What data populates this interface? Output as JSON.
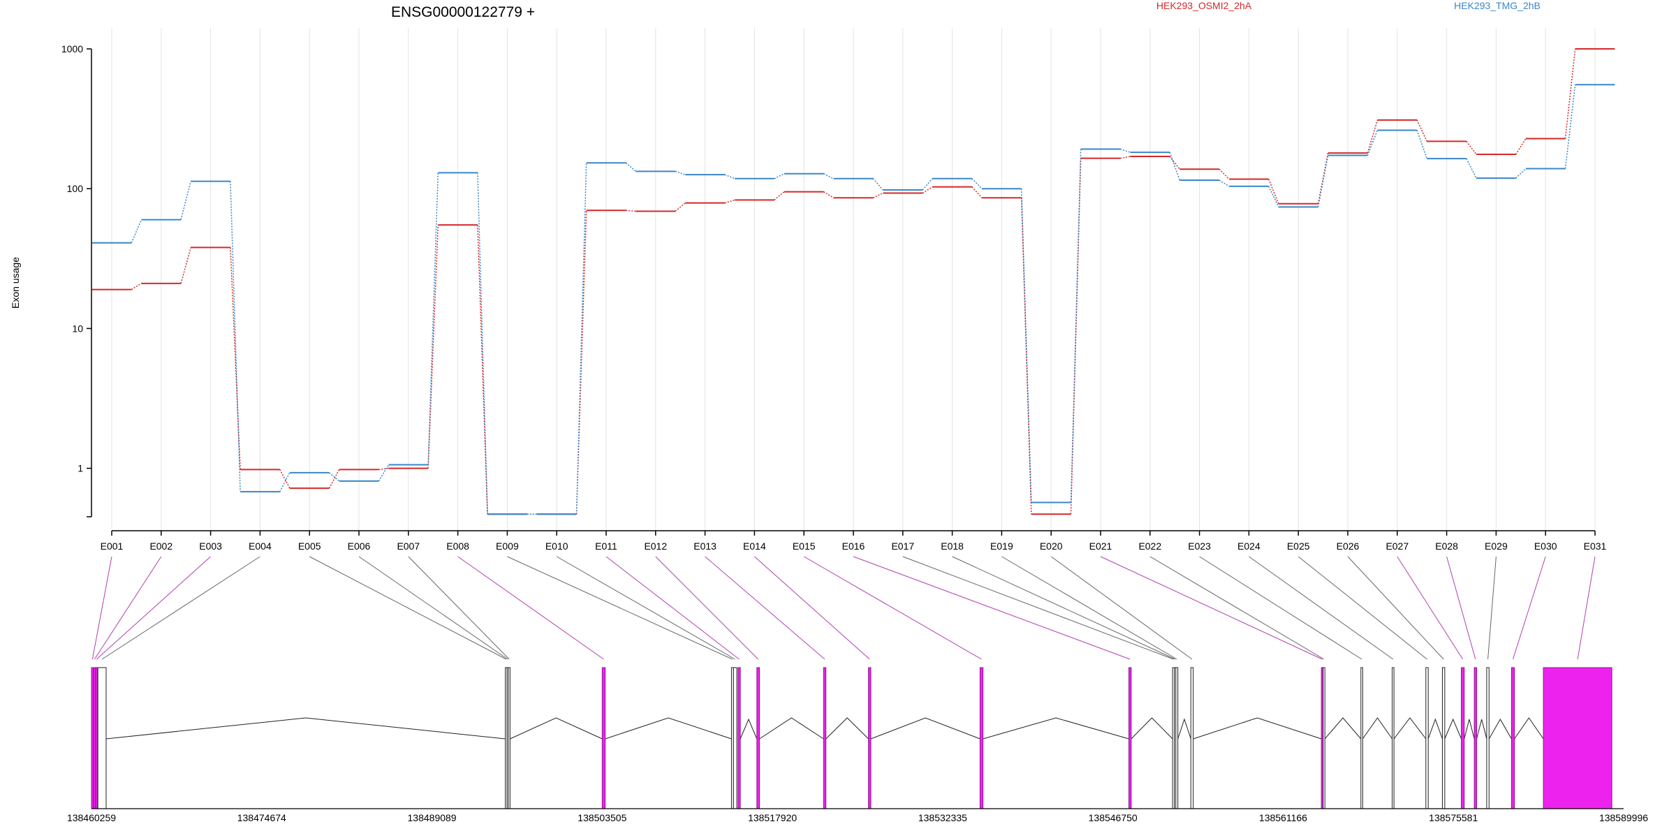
{
  "chart_data": {
    "type": "line",
    "title": "ENSG00000122779 +",
    "ylabel": "Exon usage",
    "xlabel": "",
    "y_scale": "log",
    "ylim": [
      0.45,
      1000
    ],
    "y_ticks": [
      1,
      10,
      100,
      1000
    ],
    "y_tick_labels": [
      "1",
      "10",
      "100",
      "1000"
    ],
    "grid": "vertical",
    "legend_position": "top",
    "categories": [
      "E001",
      "E002",
      "E003",
      "E004",
      "E005",
      "E006",
      "E007",
      "E008",
      "E009",
      "E010",
      "E011",
      "E012",
      "E013",
      "E014",
      "E015",
      "E016",
      "E017",
      "E018",
      "E019",
      "E020",
      "E021",
      "E022",
      "E023",
      "E024",
      "E025",
      "E026",
      "E027",
      "E028",
      "E029",
      "E030",
      "E031"
    ],
    "series": [
      {
        "name": "HEK293_OSMI2_2hA",
        "color": "#d62728",
        "values": [
          19,
          21,
          38,
          0.98,
          0.72,
          0.98,
          1.0,
          55,
          0.47,
          0.47,
          70,
          69,
          79,
          83,
          95,
          86,
          93,
          103,
          86,
          0.47,
          165,
          170,
          138,
          117,
          78,
          180,
          310,
          218,
          176,
          228,
          1000
        ]
      },
      {
        "name": "HEK293_TMG_2hB",
        "color": "#3a86c8",
        "values": [
          41,
          60,
          113,
          0.68,
          0.93,
          0.81,
          1.06,
          130,
          0.47,
          0.47,
          153,
          133,
          126,
          118,
          128,
          118,
          98,
          118,
          100,
          0.57,
          192,
          182,
          115,
          104,
          74,
          173,
          262,
          164,
          119,
          139,
          555
        ]
      }
    ],
    "genomic_axis": {
      "range": [
        138460259,
        138589996
      ],
      "tick_labels": [
        "138460259",
        "138474674",
        "138489089",
        "138503505",
        "138517920",
        "138532335",
        "138546750",
        "138561166",
        "138575581",
        "138589996"
      ]
    },
    "exon_positions": [
      {
        "id": "E001",
        "start": 138460259,
        "end": 138460420,
        "highlight": true
      },
      {
        "id": "E002",
        "start": 138460440,
        "end": 138460600,
        "highlight": true
      },
      {
        "id": "E003",
        "start": 138460620,
        "end": 138460760,
        "highlight": true
      },
      {
        "id": "E004",
        "start": 138460800,
        "end": 138461500,
        "highlight": false
      },
      {
        "id": "E005",
        "start": 138495300,
        "end": 138495450,
        "highlight": false
      },
      {
        "id": "E006",
        "start": 138495450,
        "end": 138495560,
        "highlight": false
      },
      {
        "id": "E007",
        "start": 138495560,
        "end": 138495700,
        "highlight": false
      },
      {
        "id": "E008",
        "start": 138503505,
        "end": 138503760,
        "highlight": true
      },
      {
        "id": "E009",
        "start": 138514450,
        "end": 138514620,
        "highlight": false
      },
      {
        "id": "E010",
        "start": 138514620,
        "end": 138514900,
        "highlight": false
      },
      {
        "id": "E011",
        "start": 138515000,
        "end": 138515200,
        "highlight": true
      },
      {
        "id": "E012",
        "start": 138516600,
        "end": 138516820,
        "highlight": true
      },
      {
        "id": "E013",
        "start": 138522250,
        "end": 138522450,
        "highlight": true
      },
      {
        "id": "E014",
        "start": 138526050,
        "end": 138526250,
        "highlight": true
      },
      {
        "id": "E015",
        "start": 138535500,
        "end": 138535750,
        "highlight": true
      },
      {
        "id": "E016",
        "start": 138548100,
        "end": 138548300,
        "highlight": true
      },
      {
        "id": "E017",
        "start": 138551800,
        "end": 138551960,
        "highlight": false
      },
      {
        "id": "E018",
        "start": 138551960,
        "end": 138552080,
        "highlight": false
      },
      {
        "id": "E019",
        "start": 138552080,
        "end": 138552250,
        "highlight": false
      },
      {
        "id": "E020",
        "start": 138553350,
        "end": 138553550,
        "highlight": false
      },
      {
        "id": "E021",
        "start": 138564400,
        "end": 138564550,
        "highlight": true
      },
      {
        "id": "E022",
        "start": 138564550,
        "end": 138564700,
        "highlight": false
      },
      {
        "id": "E023",
        "start": 138567750,
        "end": 138567900,
        "highlight": false
      },
      {
        "id": "E024",
        "start": 138570400,
        "end": 138570550,
        "highlight": false
      },
      {
        "id": "E025",
        "start": 138573250,
        "end": 138573450,
        "highlight": false
      },
      {
        "id": "E026",
        "start": 138574650,
        "end": 138574850,
        "highlight": false
      },
      {
        "id": "E027",
        "start": 138576250,
        "end": 138576500,
        "highlight": true
      },
      {
        "id": "E028",
        "start": 138577350,
        "end": 138577550,
        "highlight": true
      },
      {
        "id": "E029",
        "start": 138578400,
        "end": 138578600,
        "highlight": false
      },
      {
        "id": "E030",
        "start": 138580500,
        "end": 138580750,
        "highlight": true
      },
      {
        "id": "E031",
        "start": 138583200,
        "end": 138589000,
        "highlight": true
      }
    ]
  }
}
